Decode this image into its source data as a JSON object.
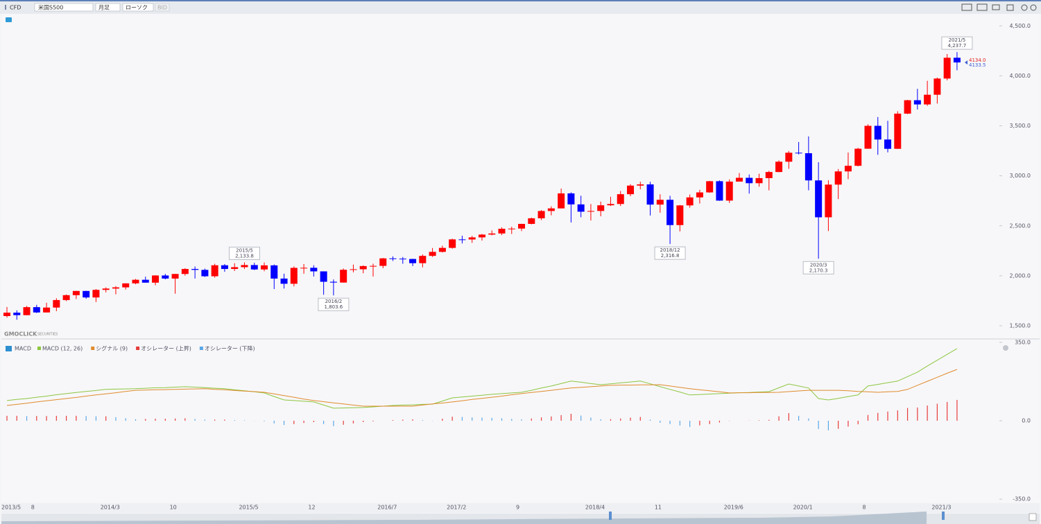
{
  "toolbar": {
    "product_type": "CFD",
    "symbol": "米国S500",
    "interval": "月足",
    "chart_style": "ローソク",
    "price_type": "BID"
  },
  "watermark": [
    "GMOCLICK",
    "SECURITIES"
  ],
  "chart_data": [
    {
      "type": "candlestick",
      "up_color": "#ff0000",
      "down_color": "#0000ff",
      "categories": [
        "2013/5",
        null,
        null,
        "8",
        null,
        null,
        null,
        null,
        null,
        null,
        "2014/3",
        null,
        null,
        null,
        null,
        null,
        null,
        "10",
        null,
        null,
        null,
        null,
        null,
        null,
        "2015/5",
        null,
        null,
        null,
        null,
        null,
        null,
        "12",
        null,
        null,
        null,
        null,
        null,
        null,
        "2016/7",
        null,
        null,
        null,
        null,
        null,
        null,
        "2017/2",
        null,
        null,
        null,
        null,
        null,
        null,
        "9",
        null,
        null,
        null,
        null,
        null,
        null,
        "2018/4",
        null,
        null,
        null,
        null,
        null,
        null,
        "11",
        null,
        null,
        null,
        null,
        null,
        null,
        "2019/6",
        null,
        null,
        null,
        null,
        null,
        null,
        "2020/1",
        null,
        null,
        null,
        null,
        null,
        null,
        "8",
        null,
        null,
        null,
        null,
        null,
        null,
        "2021/3",
        null,
        null
      ],
      "open": [
        1597,
        1631,
        1606,
        1686,
        1633,
        1682,
        1757,
        1806,
        1848,
        1783,
        1859,
        1872,
        1884,
        1924,
        1960,
        1931,
        2003,
        1972,
        2018,
        2068,
        2059,
        1995,
        2105,
        2068,
        2086,
        2107,
        2063,
        2104,
        1972,
        1920,
        2079,
        2080,
        2044,
        1940,
        1932,
        2060,
        2065,
        2097,
        2099,
        2174,
        2171,
        2168,
        2126,
        2199,
        2239,
        2279,
        2364,
        2363,
        2384,
        2412,
        2423,
        2470,
        2472,
        2519,
        2575,
        2648,
        2674,
        2824,
        2714,
        2641,
        2648,
        2705,
        2718,
        2816,
        2902,
        2914,
        2712,
        2760,
        2507,
        2704,
        2784,
        2834,
        2946,
        2752,
        2942,
        2980,
        2926,
        2977,
        3038,
        3141,
        3231,
        3226,
        2954,
        2585,
        2912,
        3044,
        3100,
        3271,
        3500,
        3363,
        3270,
        3622,
        3756,
        3714,
        3811,
        3973,
        4181
      ],
      "high": [
        1688,
        1654,
        1698,
        1709,
        1730,
        1775,
        1813,
        1849,
        1850,
        1867,
        1884,
        1897,
        1925,
        1968,
        1991,
        2005,
        2019,
        2019,
        2076,
        2093,
        2072,
        2120,
        2117,
        2126,
        2133.8,
        2130,
        2133,
        2113,
        2021,
        2094,
        2117,
        2105,
        2044,
        1963,
        2073,
        2112,
        2104,
        2121,
        2178,
        2194,
        2188,
        2170,
        2214,
        2278,
        2301,
        2371,
        2401,
        2399,
        2418,
        2454,
        2484,
        2491,
        2520,
        2582,
        2657,
        2695,
        2873,
        2835,
        2801,
        2718,
        2742,
        2791,
        2848,
        2916,
        2941,
        2940,
        2815,
        2800,
        2708,
        2813,
        2860,
        2949,
        2954,
        2964,
        3028,
        3013,
        3021,
        3050,
        3154,
        3248,
        3338,
        3394,
        3136,
        2955,
        3068,
        3233,
        3280,
        3515,
        3588,
        3550,
        3646,
        3760,
        3870,
        3950,
        3983,
        4218,
        4237.7
      ],
      "low": [
        1582,
        1560,
        1604,
        1627,
        1633,
        1646,
        1746,
        1767,
        1770,
        1737,
        1834,
        1814,
        1862,
        1915,
        1931,
        1905,
        1964,
        1821,
        2001,
        1972,
        1988,
        1981,
        2040,
        2048,
        2068,
        2057,
        2045,
        1867,
        1872,
        1893,
        2020,
        1993,
        1810,
        1803.6,
        1932,
        2034,
        2025,
        1992,
        2075,
        2148,
        2120,
        2097,
        2084,
        2188,
        2233,
        2271,
        2323,
        2329,
        2352,
        2405,
        2407,
        2418,
        2447,
        2515,
        2557,
        2605,
        2674,
        2533,
        2585,
        2553,
        2595,
        2698,
        2698,
        2796,
        2864,
        2603,
        2631,
        2316.8,
        2444,
        2681,
        2723,
        2830,
        2750,
        2728,
        2942,
        2822,
        2891,
        2855,
        3036,
        3070,
        3214,
        2855,
        2170.3,
        2447,
        2767,
        2966,
        3095,
        3270,
        3210,
        3234,
        3270,
        3617,
        3663,
        3700,
        3723,
        3955,
        4056
      ],
      "close": [
        1631,
        1606,
        1686,
        1633,
        1682,
        1757,
        1806,
        1848,
        1783,
        1859,
        1872,
        1884,
        1924,
        1960,
        1931,
        2003,
        1972,
        2018,
        2068,
        2059,
        1995,
        2105,
        2068,
        2086,
        2107,
        2063,
        2104,
        1972,
        1920,
        2079,
        2080,
        2044,
        1940,
        1932,
        2060,
        2065,
        2097,
        2099,
        2174,
        2171,
        2168,
        2126,
        2199,
        2239,
        2279,
        2364,
        2363,
        2384,
        2412,
        2423,
        2470,
        2472,
        2519,
        2575,
        2648,
        2674,
        2824,
        2714,
        2641,
        2648,
        2705,
        2718,
        2816,
        2902,
        2914,
        2712,
        2760,
        2507,
        2704,
        2784,
        2834,
        2946,
        2752,
        2942,
        2980,
        2926,
        2977,
        3038,
        3141,
        3231,
        3226,
        2954,
        2585,
        2912,
        3044,
        3100,
        3271,
        3500,
        3363,
        3270,
        3622,
        3756,
        3714,
        3811,
        3973,
        4181,
        4134
      ],
      "ylim": [
        1375,
        4620
      ],
      "yticks": [
        {
          "value": 1500,
          "label": "1,500.0"
        },
        {
          "value": 2000,
          "label": "2,000.0"
        },
        {
          "value": 2500,
          "label": "2,500.0"
        },
        {
          "value": 3000,
          "label": "3,000.0"
        },
        {
          "value": 3500,
          "label": "3,500.0"
        },
        {
          "value": 4000,
          "label": "4,000.0"
        },
        {
          "value": 4500,
          "label": "4,500.0"
        }
      ],
      "annotations": [
        {
          "date": "2015/5",
          "value": 2133.8,
          "label": "2,133.8",
          "position": "above"
        },
        {
          "date": "2016/2",
          "value": 1803.6,
          "label": "1,803.6",
          "position": "below"
        },
        {
          "date": "2018/12",
          "value": 2316.8,
          "label": "2,316.8",
          "position": "below"
        },
        {
          "date": "2020/3",
          "value": 2170.3,
          "label": "2,170.3",
          "position": "below"
        },
        {
          "date": "2021/5",
          "value": 4237.7,
          "label": "4,237.7",
          "position": "above"
        }
      ],
      "last_prices": [
        {
          "value": 4134,
          "label": "4134.0",
          "color": "#e02020"
        },
        {
          "value": 4133.5,
          "color": "#3a5fd0"
        }
      ]
    },
    {
      "type": "line",
      "title": "MACD",
      "ylim": [
        -365,
        362
      ],
      "yticks": [
        {
          "value": 350,
          "label": "350.0"
        },
        {
          "value": 0,
          "label": "0.0"
        },
        {
          "value": -350,
          "label": "-350.0"
        }
      ],
      "series": [
        {
          "name": "MACD (12, 26)",
          "color": "#8cc63f",
          "values": [
            90,
            95,
            99,
            105,
            110,
            116,
            121,
            126,
            131,
            135,
            140,
            141,
            142,
            143,
            145,
            147,
            148,
            150,
            152,
            150,
            148,
            145,
            143,
            138,
            134,
            129,
            124,
            108,
            93,
            90,
            87,
            84,
            70,
            56,
            57,
            58,
            59,
            62,
            65,
            68,
            70,
            71,
            73,
            74,
            88,
            102,
            106,
            110,
            114,
            118,
            121,
            124,
            127,
            136,
            146,
            155,
            166,
            177,
            172,
            166,
            161,
            165,
            169,
            173,
            177,
            165,
            152,
            140,
            128,
            115,
            117,
            119,
            121,
            123,
            125,
            126,
            128,
            130,
            147,
            164,
            155,
            146,
            99,
            93,
            100,
            108,
            115,
            155,
            162,
            170,
            177,
            197,
            217,
            244,
            270,
            296,
            322
          ]
        },
        {
          "name": "シグナル (9)",
          "color": "#e08a2c",
          "values": [
            68,
            73,
            78,
            84,
            89,
            94,
            99,
            104,
            110,
            115,
            120,
            125,
            131,
            136,
            137,
            138,
            139,
            140,
            141,
            142,
            143,
            140,
            138,
            135,
            132,
            130,
            127,
            120,
            112,
            105,
            97,
            90,
            85,
            80,
            75,
            70,
            65,
            65,
            65,
            65,
            65,
            65,
            70,
            75,
            79,
            84,
            89,
            95,
            100,
            105,
            110,
            116,
            121,
            126,
            131,
            136,
            141,
            146,
            149,
            152,
            155,
            158,
            159,
            159,
            160,
            160,
            161,
            155,
            149,
            143,
            138,
            134,
            129,
            124,
            125,
            125,
            126,
            126,
            127,
            130,
            133,
            136,
            136,
            136,
            136,
            134,
            131,
            129,
            127,
            129,
            131,
            140,
            158,
            176,
            194,
            212,
            229
          ]
        },
        {
          "type": "bar",
          "names": [
            "オシレーター (上昇)",
            "オシレーター (下降)"
          ],
          "colors": [
            "#e83a3a",
            "#5aa7e6"
          ],
          "values": [
            22,
            22,
            21,
            21,
            21,
            22,
            22,
            22,
            21,
            20,
            20,
            16,
            11,
            7,
            8,
            9,
            9,
            10,
            11,
            8,
            5,
            5,
            5,
            3,
            2,
            -1,
            -3,
            -12,
            -19,
            -15,
            -10,
            -6,
            -15,
            -24,
            -18,
            -12,
            -6,
            -3,
            0,
            3,
            5,
            6,
            3,
            -1,
            9,
            18,
            17,
            15,
            14,
            13,
            11,
            8,
            6,
            10,
            15,
            19,
            25,
            31,
            23,
            14,
            6,
            7,
            10,
            14,
            17,
            5,
            -9,
            -15,
            -21,
            -28,
            -21,
            -15,
            -8,
            -1,
            0,
            1,
            2,
            4,
            20,
            34,
            22,
            10,
            -37,
            -43,
            -36,
            -26,
            -16,
            26,
            35,
            41,
            46,
            57,
            59,
            68,
            76,
            84,
            93
          ]
        }
      ]
    }
  ]
}
